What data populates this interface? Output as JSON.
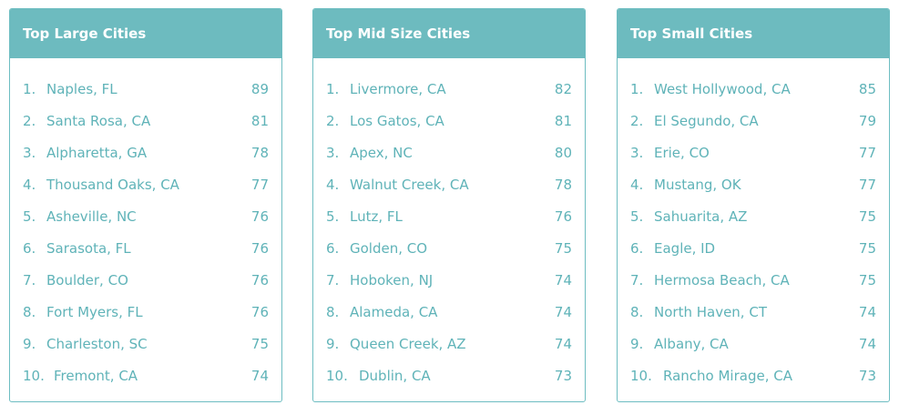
{
  "panels": [
    {
      "title": "Top Large Cities",
      "rows": [
        {
          "rank": "1.",
          "city": "Naples, FL",
          "score": "89"
        },
        {
          "rank": "2.",
          "city": "Santa Rosa, CA",
          "score": "81"
        },
        {
          "rank": "3.",
          "city": "Alpharetta, GA",
          "score": "78"
        },
        {
          "rank": "4.",
          "city": "Thousand Oaks, CA",
          "score": "77"
        },
        {
          "rank": "5.",
          "city": "Asheville, NC",
          "score": "76"
        },
        {
          "rank": "6.",
          "city": "Sarasota, FL",
          "score": "76"
        },
        {
          "rank": "7.",
          "city": "Boulder, CO",
          "score": "76"
        },
        {
          "rank": "8.",
          "city": "Fort Myers, FL",
          "score": "76"
        },
        {
          "rank": "9.",
          "city": "Charleston, SC",
          "score": "75"
        },
        {
          "rank": "10.",
          "city": "Fremont, CA",
          "score": "74"
        }
      ]
    },
    {
      "title": "Top Mid Size Cities",
      "rows": [
        {
          "rank": "1.",
          "city": "Livermore, CA",
          "score": "82"
        },
        {
          "rank": "2.",
          "city": "Los Gatos, CA",
          "score": "81"
        },
        {
          "rank": "3.",
          "city": "Apex, NC",
          "score": "80"
        },
        {
          "rank": "4.",
          "city": "Walnut Creek, CA",
          "score": "78"
        },
        {
          "rank": "5.",
          "city": "Lutz, FL",
          "score": "76"
        },
        {
          "rank": "6.",
          "city": "Golden, CO",
          "score": "75"
        },
        {
          "rank": "7.",
          "city": "Hoboken, NJ",
          "score": "74"
        },
        {
          "rank": "8.",
          "city": "Alameda, CA",
          "score": "74"
        },
        {
          "rank": "9.",
          "city": "Queen Creek, AZ",
          "score": "74"
        },
        {
          "rank": "10.",
          "city": "Dublin, CA",
          "score": "73"
        }
      ]
    },
    {
      "title": "Top Small Cities",
      "rows": [
        {
          "rank": "1.",
          "city": "West Hollywood, CA",
          "score": "85"
        },
        {
          "rank": "2.",
          "city": "El Segundo, CA",
          "score": "79"
        },
        {
          "rank": "3.",
          "city": "Erie, CO",
          "score": "77"
        },
        {
          "rank": "4.",
          "city": "Mustang, OK",
          "score": "77"
        },
        {
          "rank": "5.",
          "city": "Sahuarita, AZ",
          "score": "75"
        },
        {
          "rank": "6.",
          "city": "Eagle, ID",
          "score": "75"
        },
        {
          "rank": "7.",
          "city": "Hermosa Beach, CA",
          "score": "75"
        },
        {
          "rank": "8.",
          "city": "North Haven, CT",
          "score": "74"
        },
        {
          "rank": "9.",
          "city": "Albany, CA",
          "score": "74"
        },
        {
          "rank": "10.",
          "city": "Rancho Mirage, CA",
          "score": "73"
        }
      ]
    }
  ],
  "colors": {
    "header_bg": "#6dbbbf",
    "header_text": "#ffffff",
    "border": "#6dbdc1",
    "row_text": "#5fb3b8"
  }
}
